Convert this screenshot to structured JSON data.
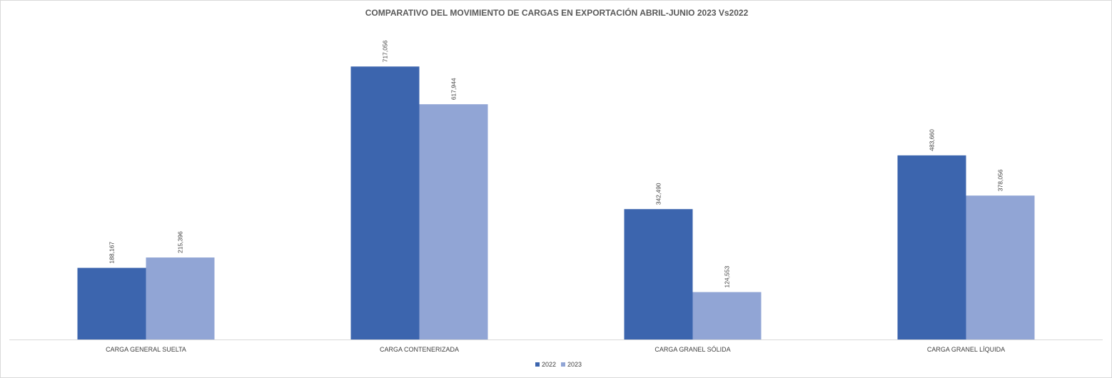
{
  "chart_data": {
    "type": "bar",
    "title": "COMPARATIVO DEL MOVIMIENTO DE CARGAS EN EXPORTACIÓN  ABRIL-JUNIO 2023 Vs2022",
    "categories": [
      "CARGA GENERAL  SUELTA",
      "CARGA CONTENERIZADA",
      "CARGA GRANEL SÓLIDA",
      "CARGA GRANEL LÍQUIDA"
    ],
    "series": [
      {
        "name": "2022",
        "color": "#3c65ae",
        "values": [
          188167,
          717056,
          342490,
          483660
        ],
        "labels": [
          "188,167",
          "717,056",
          "342,490",
          "483,660"
        ]
      },
      {
        "name": "2023",
        "color": "#91a5d5",
        "values": [
          215396,
          617944,
          124553,
          378056
        ],
        "labels": [
          "215,396",
          "617,944",
          "124,553",
          "378,056"
        ]
      }
    ],
    "xlabel": "",
    "ylabel": "",
    "ylim": [
      0,
      800000
    ],
    "grid": false,
    "legend_position": "bottom"
  }
}
